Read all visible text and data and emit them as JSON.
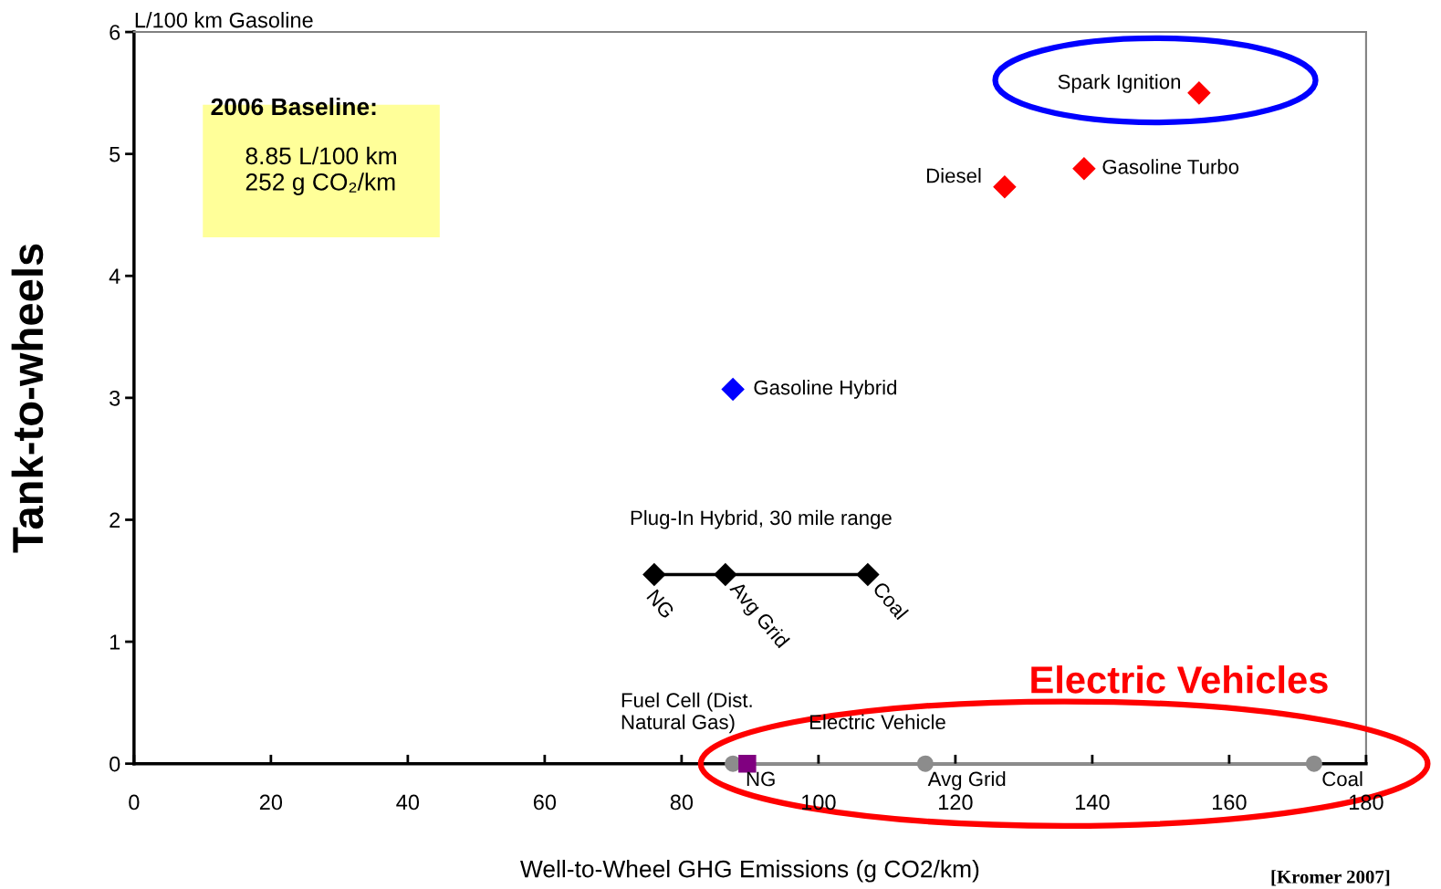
{
  "chart_data": {
    "type": "scatter",
    "xlabel": "Well-to-Wheel GHG Emissions (g CO2/km)",
    "ylabel": "Tank-to-wheels",
    "xlim": [
      0,
      180
    ],
    "xticks": [
      0,
      20,
      40,
      60,
      80,
      100,
      120,
      140,
      160,
      180
    ],
    "ylim": [
      0,
      6
    ],
    "yticks": [
      0,
      1,
      2,
      3,
      4,
      5,
      6
    ],
    "series": [
      {
        "color": "#ff0000",
        "marker": "diamond",
        "x": [
          155.6,
          138.8,
          127.2
        ],
        "values": [
          5.5,
          4.88,
          4.73
        ]
      },
      {
        "color": "#0000ff",
        "marker": "diamond",
        "x": [
          87.5
        ],
        "values": [
          3.07
        ]
      },
      {
        "type": "line",
        "color": "#000000",
        "marker": "diamond",
        "x": [
          76.0,
          86.4,
          107.2
        ],
        "values": [
          1.55,
          1.55,
          1.55
        ]
      },
      {
        "type": "line",
        "color": "#8c8c8c",
        "marker": "circle",
        "x": [
          87.5,
          115.6,
          172.4
        ],
        "values": [
          0,
          0,
          0
        ]
      },
      {
        "color": "#800080",
        "marker": "square",
        "x": [
          89.6
        ],
        "values": [
          0
        ]
      }
    ],
    "annotations": [
      "L/100 km Gasoline",
      "2006 Baseline:",
      "8.85 L/100 km\n252 g CO₂/km",
      {
        "text": "Spark Ignition",
        "x": 155.6,
        "y": 5.5
      },
      {
        "text": "Gasoline Turbo",
        "x": 138.8,
        "y": 4.88
      },
      {
        "text": "Diesel",
        "x": 127.2,
        "y": 4.73
      },
      {
        "text": "Gasoline Hybrid",
        "x": 87.5,
        "y": 3.07
      },
      {
        "text": "Plug-In Hybrid, 30 mile range",
        "x": 91.6,
        "y": 1.55
      },
      {
        "text": "NG",
        "x": 76.0,
        "y": 1.55
      },
      {
        "text": "Avg Grid",
        "x": 86.4,
        "y": 1.55
      },
      {
        "text": "Coal",
        "x": 107.2,
        "y": 1.55
      },
      {
        "text": "Fuel Cell (Dist.\nNatural Gas)",
        "x": 89.6,
        "y": 0
      },
      {
        "text": "Electric Vehicle",
        "x": 115.6,
        "y": 0
      },
      {
        "text": "NG",
        "x": 87.5,
        "y": 0
      },
      {
        "text": "Avg Grid",
        "x": 115.6,
        "y": 0
      },
      {
        "text": "Coal",
        "x": 172.4,
        "y": 0
      },
      "Electric Vehicles",
      "[Kromer 2007]"
    ]
  }
}
